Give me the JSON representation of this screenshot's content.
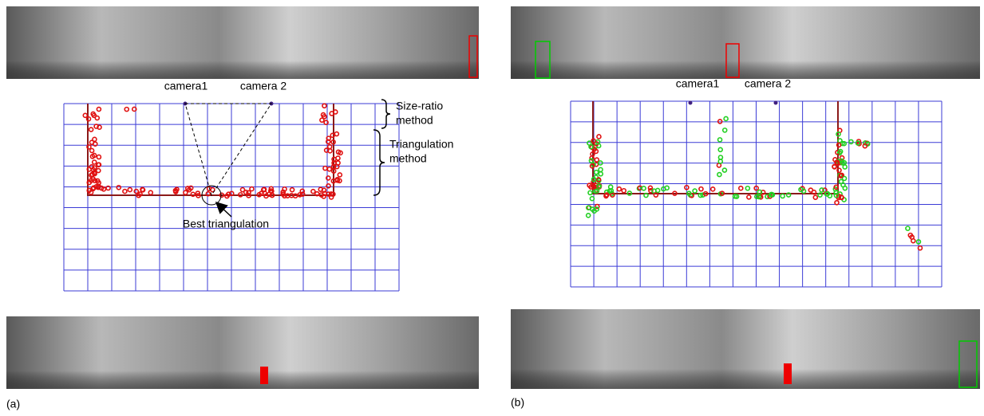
{
  "panel_a": {
    "label": "(a)",
    "camera1": "camera1",
    "camera2": "camera 2",
    "size_ratio": [
      "Size-ratio",
      "method"
    ],
    "triangulation": [
      "Triangulation",
      "method"
    ],
    "best": "Best triangulation"
  },
  "panel_b": {
    "label": "(b)",
    "camera1": "camera1",
    "camera2": "camera 2"
  }
}
